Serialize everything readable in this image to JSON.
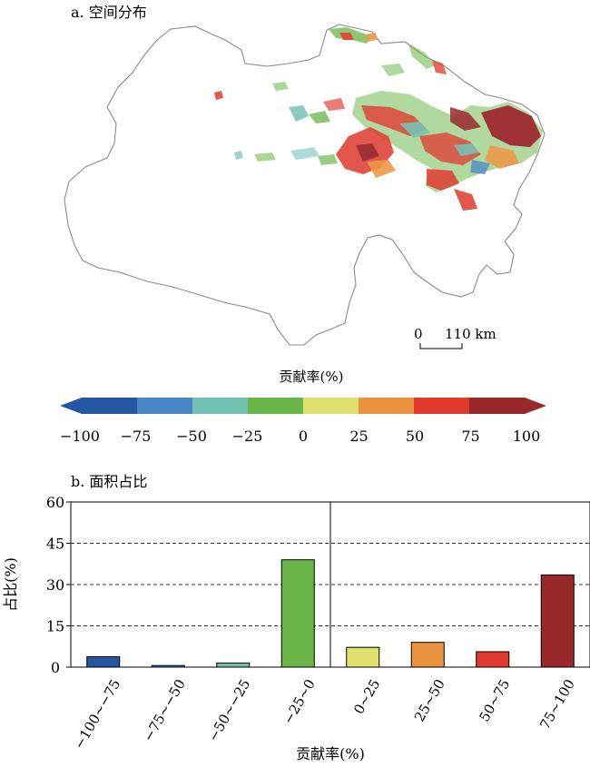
{
  "panel_a": {
    "title": "a. 空间分布",
    "scalebar": {
      "start_label": "0",
      "end_label": "110 km"
    }
  },
  "colorbar": {
    "title": "贡献率(%)",
    "ticks": [
      "−100",
      "−75",
      "−50",
      "−25",
      "0",
      "25",
      "50",
      "75",
      "100"
    ],
    "colors": [
      "#2556a2",
      "#4a86c5",
      "#6fc0b1",
      "#6ab547",
      "#dfe06d",
      "#eb9440",
      "#df3a2d",
      "#99282b"
    ]
  },
  "chart_data": {
    "type": "bar",
    "title": "b. 面积占比",
    "xlabel": "贡献率(%)",
    "ylabel": "占比(%)",
    "ylim": [
      0,
      60
    ],
    "yticks": [
      "0",
      "15",
      "30",
      "45",
      "60"
    ],
    "dashed_gridlines": [
      15,
      30,
      45
    ],
    "categories": [
      "−100~−75",
      "−75~−50",
      "−50~−25",
      "−25~0",
      "0~25",
      "25~50",
      "50~75",
      "75~100"
    ],
    "values": [
      3.8,
      0.6,
      1.5,
      39,
      7.2,
      9,
      5.6,
      33.5
    ],
    "colors": [
      "#2556a2",
      "#4a86c5",
      "#6fc0b1",
      "#6ab547",
      "#dfe06d",
      "#eb9440",
      "#df3a2d",
      "#99282b"
    ]
  }
}
